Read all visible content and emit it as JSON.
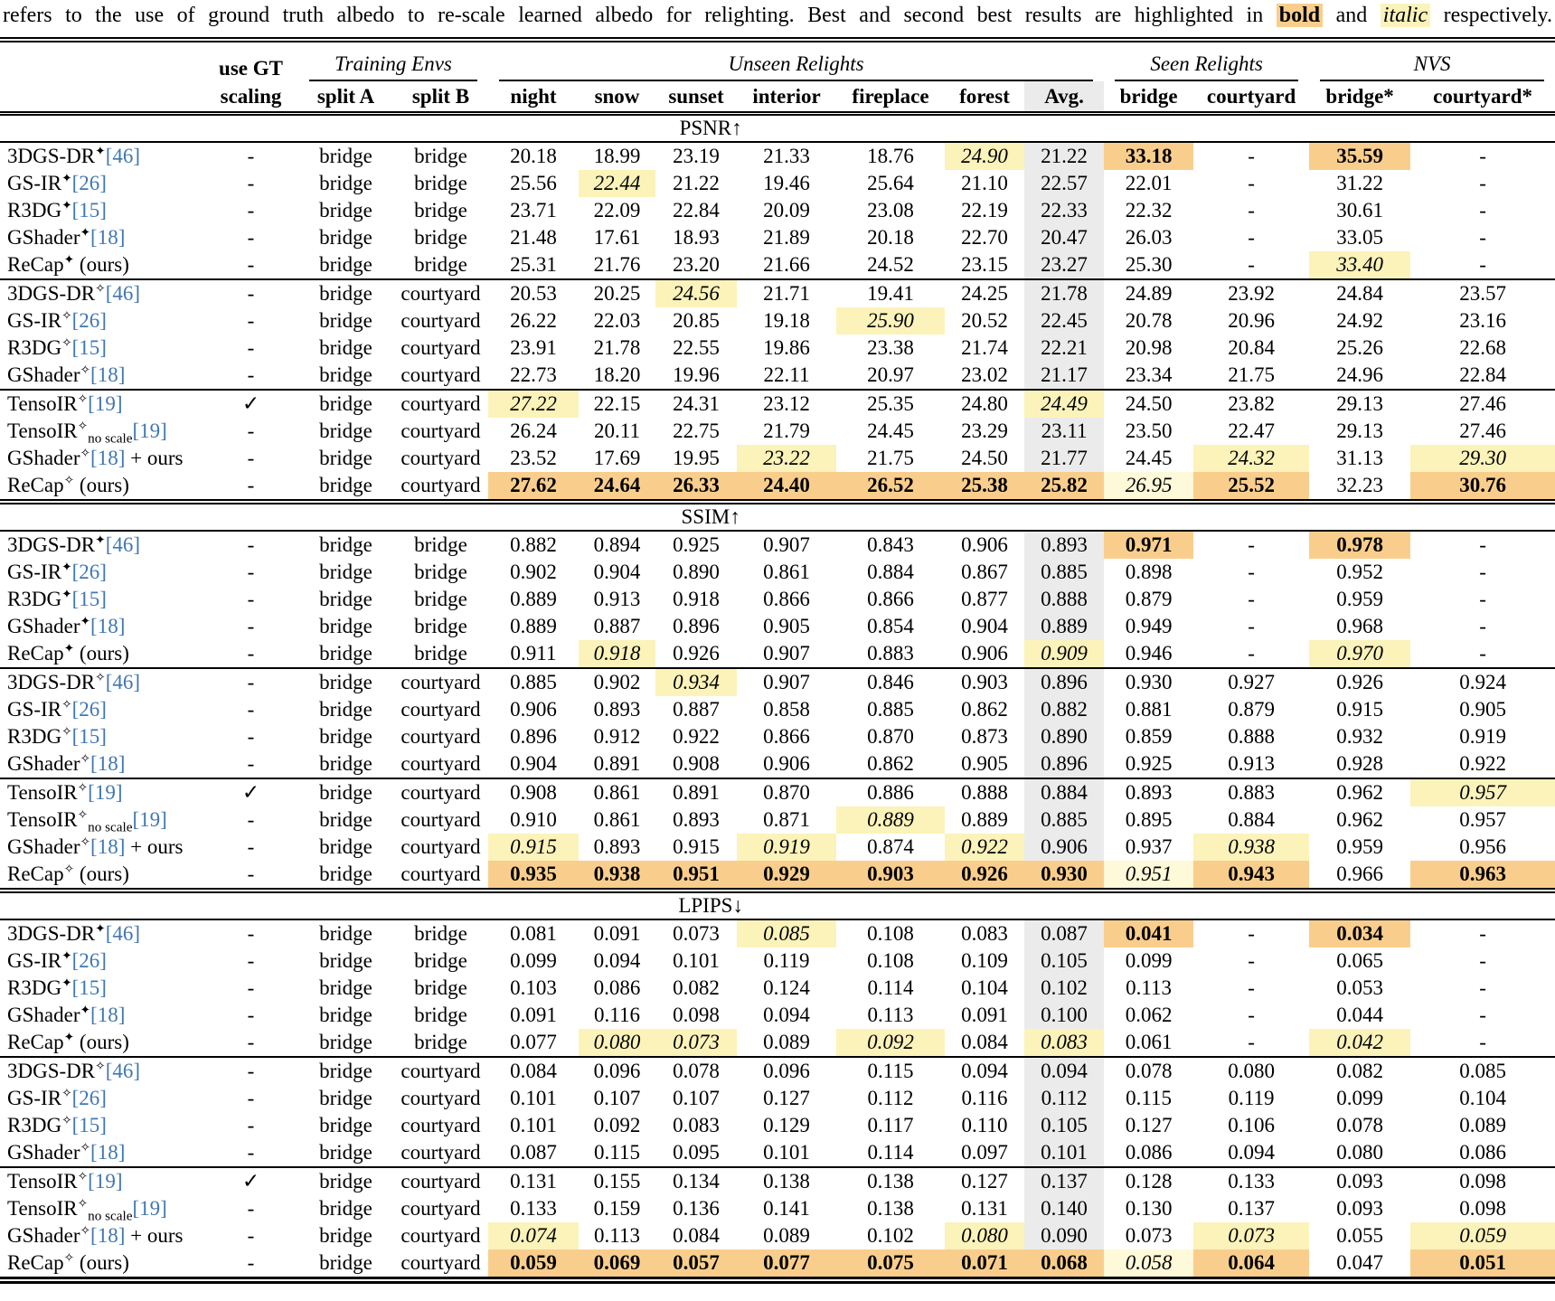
{
  "caption": {
    "prefix": "refers to the use of ground truth albedo to re-scale learned albedo for relighting. Best and second best results are highlighted in ",
    "bold_word": "bold",
    "and": " and ",
    "italic_word": "italic",
    "suffix": " respectively."
  },
  "colors": {
    "best_bg": "#F9CE8D",
    "second_bg": "#FBF3BA",
    "second_pale_bg": "#FEF9D8",
    "avg_bg": "#EBEBEB",
    "cite_blue": "#4077B0"
  },
  "header": {
    "use_gt_line1": "use GT",
    "use_gt_line2": "scaling",
    "groups": [
      {
        "label": "Training Envs",
        "cols": [
          "split A",
          "split B"
        ]
      },
      {
        "label": "Unseen Relights",
        "cols": [
          "night",
          "snow",
          "sunset",
          "interior",
          "fireplace",
          "forest",
          "Avg."
        ]
      },
      {
        "label": "Seen Relights",
        "cols": [
          "bridge",
          "courtyard"
        ]
      },
      {
        "label": "NVS",
        "cols": [
          "bridge*",
          "courtyard*"
        ]
      }
    ]
  },
  "methods": [
    {
      "name": "3DGS-DR",
      "marker": "✦",
      "cite": "[46]",
      "gt": "-",
      "splitA": "bridge",
      "splitB": "bridge"
    },
    {
      "name": "GS-IR",
      "marker": "✦",
      "cite": "[26]",
      "gt": "-",
      "splitA": "bridge",
      "splitB": "bridge"
    },
    {
      "name": "R3DG",
      "marker": "✦",
      "cite": "[15]",
      "gt": "-",
      "splitA": "bridge",
      "splitB": "bridge"
    },
    {
      "name": "GShader",
      "marker": "✦",
      "cite": "[18]",
      "gt": "-",
      "splitA": "bridge",
      "splitB": "bridge"
    },
    {
      "name": "ReCap",
      "marker": "✦",
      "post": " (ours)",
      "gt": "-",
      "splitA": "bridge",
      "splitB": "bridge"
    },
    {
      "name": "3DGS-DR",
      "marker": "✧",
      "cite": "[46]",
      "gt": "-",
      "splitA": "bridge",
      "splitB": "courtyard"
    },
    {
      "name": "GS-IR",
      "marker": "✧",
      "cite": "[26]",
      "gt": "-",
      "splitA": "bridge",
      "splitB": "courtyard"
    },
    {
      "name": "R3DG",
      "marker": "✧",
      "cite": "[15]",
      "gt": "-",
      "splitA": "bridge",
      "splitB": "courtyard"
    },
    {
      "name": "GShader",
      "marker": "✧",
      "cite": "[18]",
      "gt": "-",
      "splitA": "bridge",
      "splitB": "courtyard"
    },
    {
      "name": "TensoIR",
      "marker": "✧",
      "cite": "[19]",
      "gt": "✓",
      "splitA": "bridge",
      "splitB": "courtyard"
    },
    {
      "name": "TensoIR",
      "marker": "✧",
      "sub": "no scale",
      "cite": "[19]",
      "gt": "-",
      "splitA": "bridge",
      "splitB": "courtyard"
    },
    {
      "name": "GShader",
      "marker": "✧",
      "cite": "[18]",
      "post": " + ours",
      "gt": "-",
      "splitA": "bridge",
      "splitB": "courtyard"
    },
    {
      "name": "ReCap",
      "marker": "✧",
      "post": " (ours)",
      "gt": "-",
      "splitA": "bridge",
      "splitB": "courtyard"
    }
  ],
  "layout": {
    "group_rule_after": [
      4,
      8
    ]
  },
  "sections": [
    {
      "label": "PSNR↑",
      "rows": [
        [
          "20.18",
          "18.99",
          "23.19",
          "21.33",
          "18.76",
          "i:24.90",
          "21.22",
          "b:33.18",
          "-",
          "b:35.59",
          "-"
        ],
        [
          "25.56",
          "i:22.44",
          "21.22",
          "19.46",
          "25.64",
          "21.10",
          "22.57",
          "22.01",
          "-",
          "31.22",
          "-"
        ],
        [
          "23.71",
          "22.09",
          "22.84",
          "20.09",
          "23.08",
          "22.19",
          "22.33",
          "22.32",
          "-",
          "30.61",
          "-"
        ],
        [
          "21.48",
          "17.61",
          "18.93",
          "21.89",
          "20.18",
          "22.70",
          "20.47",
          "26.03",
          "-",
          "33.05",
          "-"
        ],
        [
          "25.31",
          "21.76",
          "23.20",
          "21.66",
          "24.52",
          "23.15",
          "23.27",
          "25.30",
          "-",
          "i:33.40",
          "-"
        ],
        [
          "20.53",
          "20.25",
          "i:24.56",
          "21.71",
          "19.41",
          "24.25",
          "21.78",
          "24.89",
          "23.92",
          "24.84",
          "23.57"
        ],
        [
          "26.22",
          "22.03",
          "20.85",
          "19.18",
          "i:25.90",
          "20.52",
          "22.45",
          "20.78",
          "20.96",
          "24.92",
          "23.16"
        ],
        [
          "23.91",
          "21.78",
          "22.55",
          "19.86",
          "23.38",
          "21.74",
          "22.21",
          "20.98",
          "20.84",
          "25.26",
          "22.68"
        ],
        [
          "22.73",
          "18.20",
          "19.96",
          "22.11",
          "20.97",
          "23.02",
          "21.17",
          "23.34",
          "21.75",
          "24.96",
          "22.84"
        ],
        [
          "i:27.22",
          "22.15",
          "24.31",
          "23.12",
          "25.35",
          "24.80",
          "i:24.49",
          "24.50",
          "23.82",
          "29.13",
          "27.46"
        ],
        [
          "26.24",
          "20.11",
          "22.75",
          "21.79",
          "24.45",
          "23.29",
          "23.11",
          "23.50",
          "22.47",
          "29.13",
          "27.46"
        ],
        [
          "23.52",
          "17.69",
          "19.95",
          "i:23.22",
          "21.75",
          "24.50",
          "21.77",
          "24.45",
          "i:24.32",
          "31.13",
          "i:29.30"
        ],
        [
          "b:27.62",
          "b:24.64",
          "b:26.33",
          "b:24.40",
          "b:26.52",
          "b:25.38",
          "b:25.82",
          "I:26.95",
          "b:25.52",
          "32.23",
          "b:30.76"
        ]
      ]
    },
    {
      "label": "SSIM↑",
      "rows": [
        [
          "0.882",
          "0.894",
          "0.925",
          "0.907",
          "0.843",
          "0.906",
          "0.893",
          "b:0.971",
          "-",
          "b:0.978",
          "-"
        ],
        [
          "0.902",
          "0.904",
          "0.890",
          "0.861",
          "0.884",
          "0.867",
          "0.885",
          "0.898",
          "-",
          "0.952",
          "-"
        ],
        [
          "0.889",
          "0.913",
          "0.918",
          "0.866",
          "0.866",
          "0.877",
          "0.888",
          "0.879",
          "-",
          "0.959",
          "-"
        ],
        [
          "0.889",
          "0.887",
          "0.896",
          "0.905",
          "0.854",
          "0.904",
          "0.889",
          "0.949",
          "-",
          "0.968",
          "-"
        ],
        [
          "0.911",
          "i:0.918",
          "0.926",
          "0.907",
          "0.883",
          "0.906",
          "i:0.909",
          "0.946",
          "-",
          "i:0.970",
          "-"
        ],
        [
          "0.885",
          "0.902",
          "i:0.934",
          "0.907",
          "0.846",
          "0.903",
          "0.896",
          "0.930",
          "0.927",
          "0.926",
          "0.924"
        ],
        [
          "0.906",
          "0.893",
          "0.887",
          "0.858",
          "0.885",
          "0.862",
          "0.882",
          "0.881",
          "0.879",
          "0.915",
          "0.905"
        ],
        [
          "0.896",
          "0.912",
          "0.922",
          "0.866",
          "0.870",
          "0.873",
          "0.890",
          "0.859",
          "0.888",
          "0.932",
          "0.919"
        ],
        [
          "0.904",
          "0.891",
          "0.908",
          "0.906",
          "0.862",
          "0.905",
          "0.896",
          "0.925",
          "0.913",
          "0.928",
          "0.922"
        ],
        [
          "0.908",
          "0.861",
          "0.891",
          "0.870",
          "0.886",
          "0.888",
          "0.884",
          "0.893",
          "0.883",
          "0.962",
          "i:0.957"
        ],
        [
          "0.910",
          "0.861",
          "0.893",
          "0.871",
          "i:0.889",
          "0.889",
          "0.885",
          "0.895",
          "0.884",
          "0.962",
          "0.957"
        ],
        [
          "i:0.915",
          "0.893",
          "0.915",
          "i:0.919",
          "0.874",
          "i:0.922",
          "0.906",
          "0.937",
          "i:0.938",
          "0.959",
          "0.956"
        ],
        [
          "b:0.935",
          "b:0.938",
          "b:0.951",
          "b:0.929",
          "b:0.903",
          "b:0.926",
          "b:0.930",
          "I:0.951",
          "b:0.943",
          "0.966",
          "b:0.963"
        ]
      ]
    },
    {
      "label": "LPIPS↓",
      "rows": [
        [
          "0.081",
          "0.091",
          "0.073",
          "i:0.085",
          "0.108",
          "0.083",
          "0.087",
          "b:0.041",
          "-",
          "b:0.034",
          "-"
        ],
        [
          "0.099",
          "0.094",
          "0.101",
          "0.119",
          "0.108",
          "0.109",
          "0.105",
          "0.099",
          "-",
          "0.065",
          "-"
        ],
        [
          "0.103",
          "0.086",
          "0.082",
          "0.124",
          "0.114",
          "0.104",
          "0.102",
          "0.113",
          "-",
          "0.053",
          "-"
        ],
        [
          "0.091",
          "0.116",
          "0.098",
          "0.094",
          "0.113",
          "0.091",
          "0.100",
          "0.062",
          "-",
          "0.044",
          "-"
        ],
        [
          "0.077",
          "i:0.080",
          "i:0.073",
          "0.089",
          "i:0.092",
          "0.084",
          "i:0.083",
          "0.061",
          "-",
          "i:0.042",
          "-"
        ],
        [
          "0.084",
          "0.096",
          "0.078",
          "0.096",
          "0.115",
          "0.094",
          "0.094",
          "0.078",
          "0.080",
          "0.082",
          "0.085"
        ],
        [
          "0.101",
          "0.107",
          "0.107",
          "0.127",
          "0.112",
          "0.116",
          "0.112",
          "0.115",
          "0.119",
          "0.099",
          "0.104"
        ],
        [
          "0.101",
          "0.092",
          "0.083",
          "0.129",
          "0.117",
          "0.110",
          "0.105",
          "0.127",
          "0.106",
          "0.078",
          "0.089"
        ],
        [
          "0.087",
          "0.115",
          "0.095",
          "0.101",
          "0.114",
          "0.097",
          "0.101",
          "0.086",
          "0.094",
          "0.080",
          "0.086"
        ],
        [
          "0.131",
          "0.155",
          "0.134",
          "0.138",
          "0.138",
          "0.127",
          "0.137",
          "0.128",
          "0.133",
          "0.093",
          "0.098"
        ],
        [
          "0.133",
          "0.159",
          "0.136",
          "0.141",
          "0.138",
          "0.131",
          "0.140",
          "0.130",
          "0.137",
          "0.093",
          "0.098"
        ],
        [
          "i:0.074",
          "0.113",
          "0.084",
          "0.089",
          "0.102",
          "i:0.080",
          "0.090",
          "0.073",
          "i:0.073",
          "0.055",
          "i:0.059"
        ],
        [
          "b:0.059",
          "b:0.069",
          "b:0.057",
          "b:0.077",
          "b:0.075",
          "b:0.071",
          "b:0.068",
          "I:0.058",
          "b:0.064",
          "0.047",
          "b:0.051"
        ]
      ]
    }
  ]
}
